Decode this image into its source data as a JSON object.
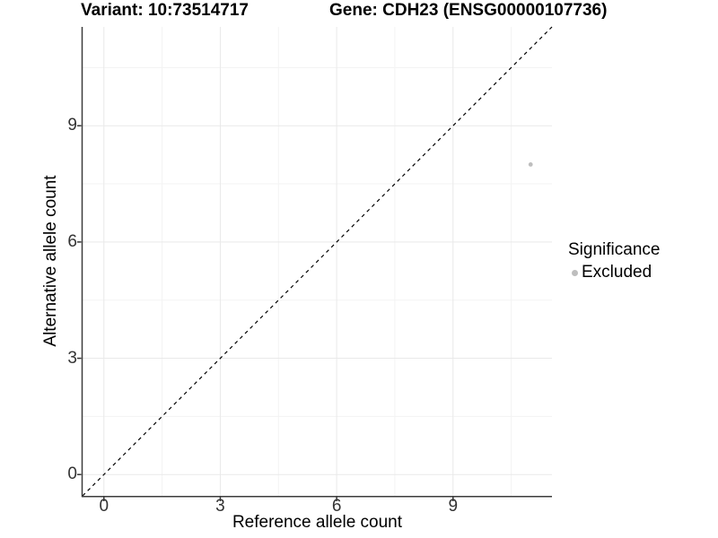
{
  "chart_data": {
    "type": "scatter",
    "title_left": "Variant: 10:73514717",
    "title_right": "Gene: CDH23 (ENSG00000107736)",
    "xlabel": "Reference allele count",
    "ylabel": "Alternative allele count",
    "xlim": [
      -0.55,
      11.55
    ],
    "ylim": [
      -0.55,
      11.55
    ],
    "xticks": [
      0,
      3,
      6,
      9
    ],
    "yticks": [
      0,
      3,
      6,
      9
    ],
    "xminor": [
      1.5,
      4.5,
      7.5,
      10.5
    ],
    "yminor": [
      1.5,
      4.5,
      7.5,
      10.5
    ],
    "grid": true,
    "points": [
      {
        "x": 11,
        "y": 8,
        "series": "Excluded",
        "color": "#bebebe",
        "radius": 2.4
      }
    ],
    "reference_line": {
      "kind": "identity",
      "style": "dashed",
      "color": "#000000"
    },
    "legend": {
      "title": "Significance",
      "position": "right",
      "entries": [
        {
          "label": "Excluded",
          "color": "#bebebe"
        }
      ]
    }
  },
  "colors": {
    "background": "#ffffff",
    "major_grid": "#e9e9e9",
    "minor_grid": "#f3f3f3",
    "axis_line": "#3c3c3c",
    "tick_mark": "#333333",
    "tick_text": "#333333",
    "point": "#bebebe"
  }
}
